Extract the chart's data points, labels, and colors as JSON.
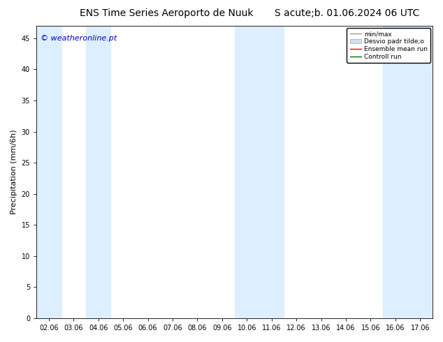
{
  "title_left": "ENS Time Series Aeroporto de Nuuk",
  "title_right": "S acute;b. 01.06.2024 06 UTC",
  "ylabel": "Precipitation (mm/6h)",
  "watermark": "© weatheronline.pt",
  "watermark_color": "#0000cc",
  "background_color": "#ffffff",
  "plot_bg_color": "#ffffff",
  "shade_color": "#ddeeff",
  "ylim": [
    0,
    47
  ],
  "yticks": [
    0,
    5,
    10,
    15,
    20,
    25,
    30,
    35,
    40,
    45
  ],
  "xtick_labels": [
    "02.06",
    "03.06",
    "04.06",
    "05.06",
    "06.06",
    "07.06",
    "08.06",
    "09.06",
    "10.06",
    "11.06",
    "12.06",
    "13.06",
    "14.06",
    "15.06",
    "16.06",
    "17.06"
  ],
  "shaded_bands": [
    {
      "xstart": -0.5,
      "xend": 0.5
    },
    {
      "xstart": 1.5,
      "xend": 2.5
    },
    {
      "xstart": 7.5,
      "xend": 9.5
    },
    {
      "xstart": 13.5,
      "xend": 15.5
    }
  ],
  "legend_entries": [
    {
      "label": "min/max",
      "color": "#aaaaaa",
      "linestyle": "-",
      "linewidth": 1.0
    },
    {
      "label": "Desvio padr tilde;o",
      "color": "#cce0f0",
      "linestyle": "-",
      "linewidth": 6
    },
    {
      "label": "Ensemble mean run",
      "color": "#ff0000",
      "linestyle": "-",
      "linewidth": 1.0
    },
    {
      "label": "Controll run",
      "color": "#006600",
      "linestyle": "-",
      "linewidth": 1.0
    }
  ],
  "title_fontsize": 10,
  "tick_fontsize": 7,
  "ylabel_fontsize": 8,
  "watermark_fontsize": 8
}
